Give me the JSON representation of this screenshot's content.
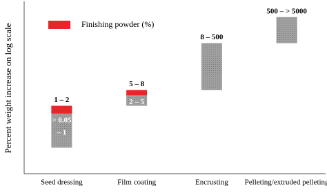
{
  "chart_data": {
    "type": "range-bar",
    "y_label": "Percent weight increase on log scale",
    "categories": [
      "Seed dressing",
      "Film coating",
      "Encrusting",
      "Pelleting/extruded pelleting"
    ],
    "log_scale": true,
    "ylim": [
      0.005,
      20000
    ],
    "legend_position": "upper left",
    "series": [
      {
        "name": "Finishing powder (%)",
        "color": "#e8262a",
        "values": [
          [
            1,
            2
          ],
          [
            5,
            8
          ],
          null,
          null
        ],
        "value_labels": [
          [
            "1 – 2"
          ],
          [
            "5 – 8"
          ],
          null,
          null
        ]
      },
      {
        "color": "#9a9a9a",
        "values": [
          [
            0.05,
            1
          ],
          [
            2,
            5
          ],
          [
            8,
            500
          ],
          [
            500,
            5000
          ]
        ],
        "value_labels": [
          [
            "> 0.05",
            "– 1"
          ],
          [
            "2 – 5"
          ],
          [
            "8 – 500"
          ],
          [
            "500 – > 5000"
          ]
        ]
      }
    ]
  }
}
